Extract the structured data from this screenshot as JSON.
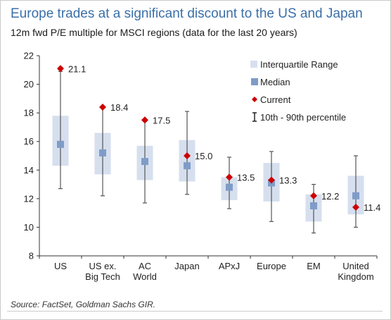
{
  "title": "Europe trades at a significant discount to the US and Japan",
  "subtitle": "12m fwd P/E multiple for MSCI regions (data for the last 20 years)",
  "source": "Source: FactSet, Goldman Sachs GIR.",
  "colors": {
    "iqr_box": "#d6dfee",
    "median": "#7f9cc8",
    "current": "#cc0000",
    "whisker": "#555555",
    "axis": "#333333",
    "title": "#3a6fa8"
  },
  "chart_data": {
    "type": "boxplot",
    "ylim": [
      8,
      22
    ],
    "yticks": [
      8,
      10,
      12,
      14,
      16,
      18,
      20,
      22
    ],
    "grid": false,
    "legend_position": "top-right",
    "legend": [
      {
        "key": "iqr",
        "label": "Interquartile Range"
      },
      {
        "key": "median",
        "label": "Median"
      },
      {
        "key": "current",
        "label": "Current"
      },
      {
        "key": "range",
        "label": "10th - 90th percentile"
      }
    ],
    "categories": [
      {
        "label": [
          "US"
        ],
        "p10": 12.7,
        "q1": 14.3,
        "median": 15.8,
        "q3": 17.8,
        "p90": 20.9,
        "current": 21.1,
        "current_label": "21.1"
      },
      {
        "label": [
          "US ex.",
          "Big Tech"
        ],
        "p10": 12.2,
        "q1": 13.7,
        "median": 15.2,
        "q3": 16.6,
        "p90": 18.4,
        "current": 18.4,
        "current_label": "18.4"
      },
      {
        "label": [
          "AC",
          "World"
        ],
        "p10": 11.7,
        "q1": 13.3,
        "median": 14.6,
        "q3": 15.7,
        "p90": 17.4,
        "current": 17.5,
        "current_label": "17.5"
      },
      {
        "label": [
          "Japan"
        ],
        "p10": 12.3,
        "q1": 13.2,
        "median": 14.3,
        "q3": 16.1,
        "p90": 18.1,
        "current": 15.0,
        "current_label": "15.0"
      },
      {
        "label": [
          "APxJ"
        ],
        "p10": 11.3,
        "q1": 11.9,
        "median": 12.8,
        "q3": 13.5,
        "p90": 14.9,
        "current": 13.5,
        "current_label": "13.5"
      },
      {
        "label": [
          "Europe"
        ],
        "p10": 10.4,
        "q1": 11.8,
        "median": 13.1,
        "q3": 14.5,
        "p90": 15.3,
        "current": 13.3,
        "current_label": "13.3"
      },
      {
        "label": [
          "EM"
        ],
        "p10": 9.6,
        "q1": 10.4,
        "median": 11.5,
        "q3": 12.3,
        "p90": 13.0,
        "current": 12.2,
        "current_label": "12.2"
      },
      {
        "label": [
          "United",
          "Kingdom"
        ],
        "p10": 10.0,
        "q1": 10.9,
        "median": 12.2,
        "q3": 13.6,
        "p90": 15.0,
        "current": 11.4,
        "current_label": "11.4"
      }
    ]
  }
}
